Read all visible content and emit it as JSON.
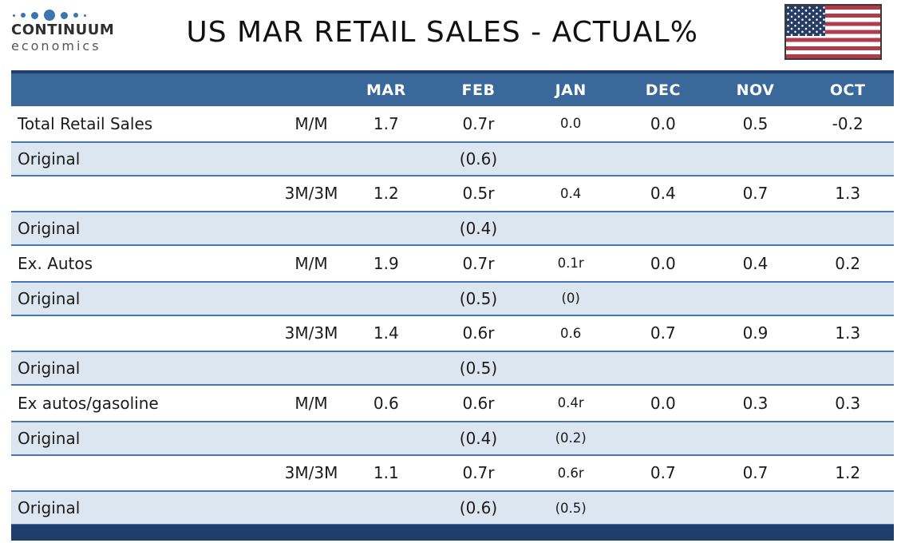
{
  "brand": {
    "name": "CONTINUUM",
    "subname": "economics",
    "logo_dots_icon": "continuum-dots-icon",
    "dot_color": "#3c74ae"
  },
  "header": {
    "title": "US MAR RETAIL SALES - ACTUAL%",
    "flag_icon": "us-flag-icon"
  },
  "colors": {
    "header_fill": "#3a689b",
    "header_text": "#ffffff",
    "original_row_fill": "#dce6f1",
    "row_rule": "#4377b6",
    "frame_navy": "#1f3e6e",
    "flag_red": "#b13b49",
    "flag_navy": "#253c63",
    "body_text": "#1b1b1b"
  },
  "chart_data": {
    "type": "table",
    "title": "US MAR RETAIL SALES - ACTUAL%",
    "columns": [
      "",
      "",
      "MAR",
      "FEB",
      "JAN",
      "DEC",
      "NOV",
      "OCT"
    ],
    "month_columns": [
      "MAR",
      "FEB",
      "JAN",
      "DEC",
      "NOV",
      "OCT"
    ],
    "rows": [
      {
        "label": "Total Retail Sales",
        "period": "M/M",
        "values": [
          "1.7",
          "0.7r",
          "0.0",
          "0.0",
          "0.5",
          "-0.2"
        ],
        "original": false
      },
      {
        "label": "Original",
        "period": "",
        "values": [
          "",
          "(0.6)",
          "",
          "",
          "",
          ""
        ],
        "original": true
      },
      {
        "label": "",
        "period": "3M/3M",
        "values": [
          "1.2",
          "0.5r",
          "0.4",
          "0.4",
          "0.7",
          "1.3"
        ],
        "original": false
      },
      {
        "label": "Original",
        "period": "",
        "values": [
          "",
          "(0.4)",
          "",
          "",
          "",
          ""
        ],
        "original": true
      },
      {
        "label": "Ex. Autos",
        "period": "M/M",
        "values": [
          "1.9",
          "0.7r",
          "0.1r",
          "0.0",
          "0.4",
          "0.2"
        ],
        "original": false
      },
      {
        "label": "Original",
        "period": "",
        "values": [
          "",
          "(0.5)",
          "(0)",
          "",
          "",
          ""
        ],
        "original": true
      },
      {
        "label": "",
        "period": "3M/3M",
        "values": [
          "1.4",
          "0.6r",
          "0.6",
          "0.7",
          "0.9",
          "1.3"
        ],
        "original": false
      },
      {
        "label": "Original",
        "period": "",
        "values": [
          "",
          "(0.5)",
          "",
          "",
          "",
          ""
        ],
        "original": true
      },
      {
        "label": "Ex autos/gasoline",
        "period": "M/M",
        "values": [
          "0.6",
          "0.6r",
          "0.4r",
          "0.0",
          "0.3",
          "0.3"
        ],
        "original": false
      },
      {
        "label": "Original",
        "period": "",
        "values": [
          "",
          "(0.4)",
          "(0.2)",
          "",
          "",
          ""
        ],
        "original": true
      },
      {
        "label": "",
        "period": "3M/3M",
        "values": [
          "1.1",
          "0.7r",
          "0.6r",
          "0.7",
          "0.7",
          "1.2"
        ],
        "original": false
      },
      {
        "label": "Original",
        "period": "",
        "values": [
          "",
          "(0.6)",
          "(0.5)",
          "",
          "",
          ""
        ],
        "original": true
      }
    ]
  }
}
